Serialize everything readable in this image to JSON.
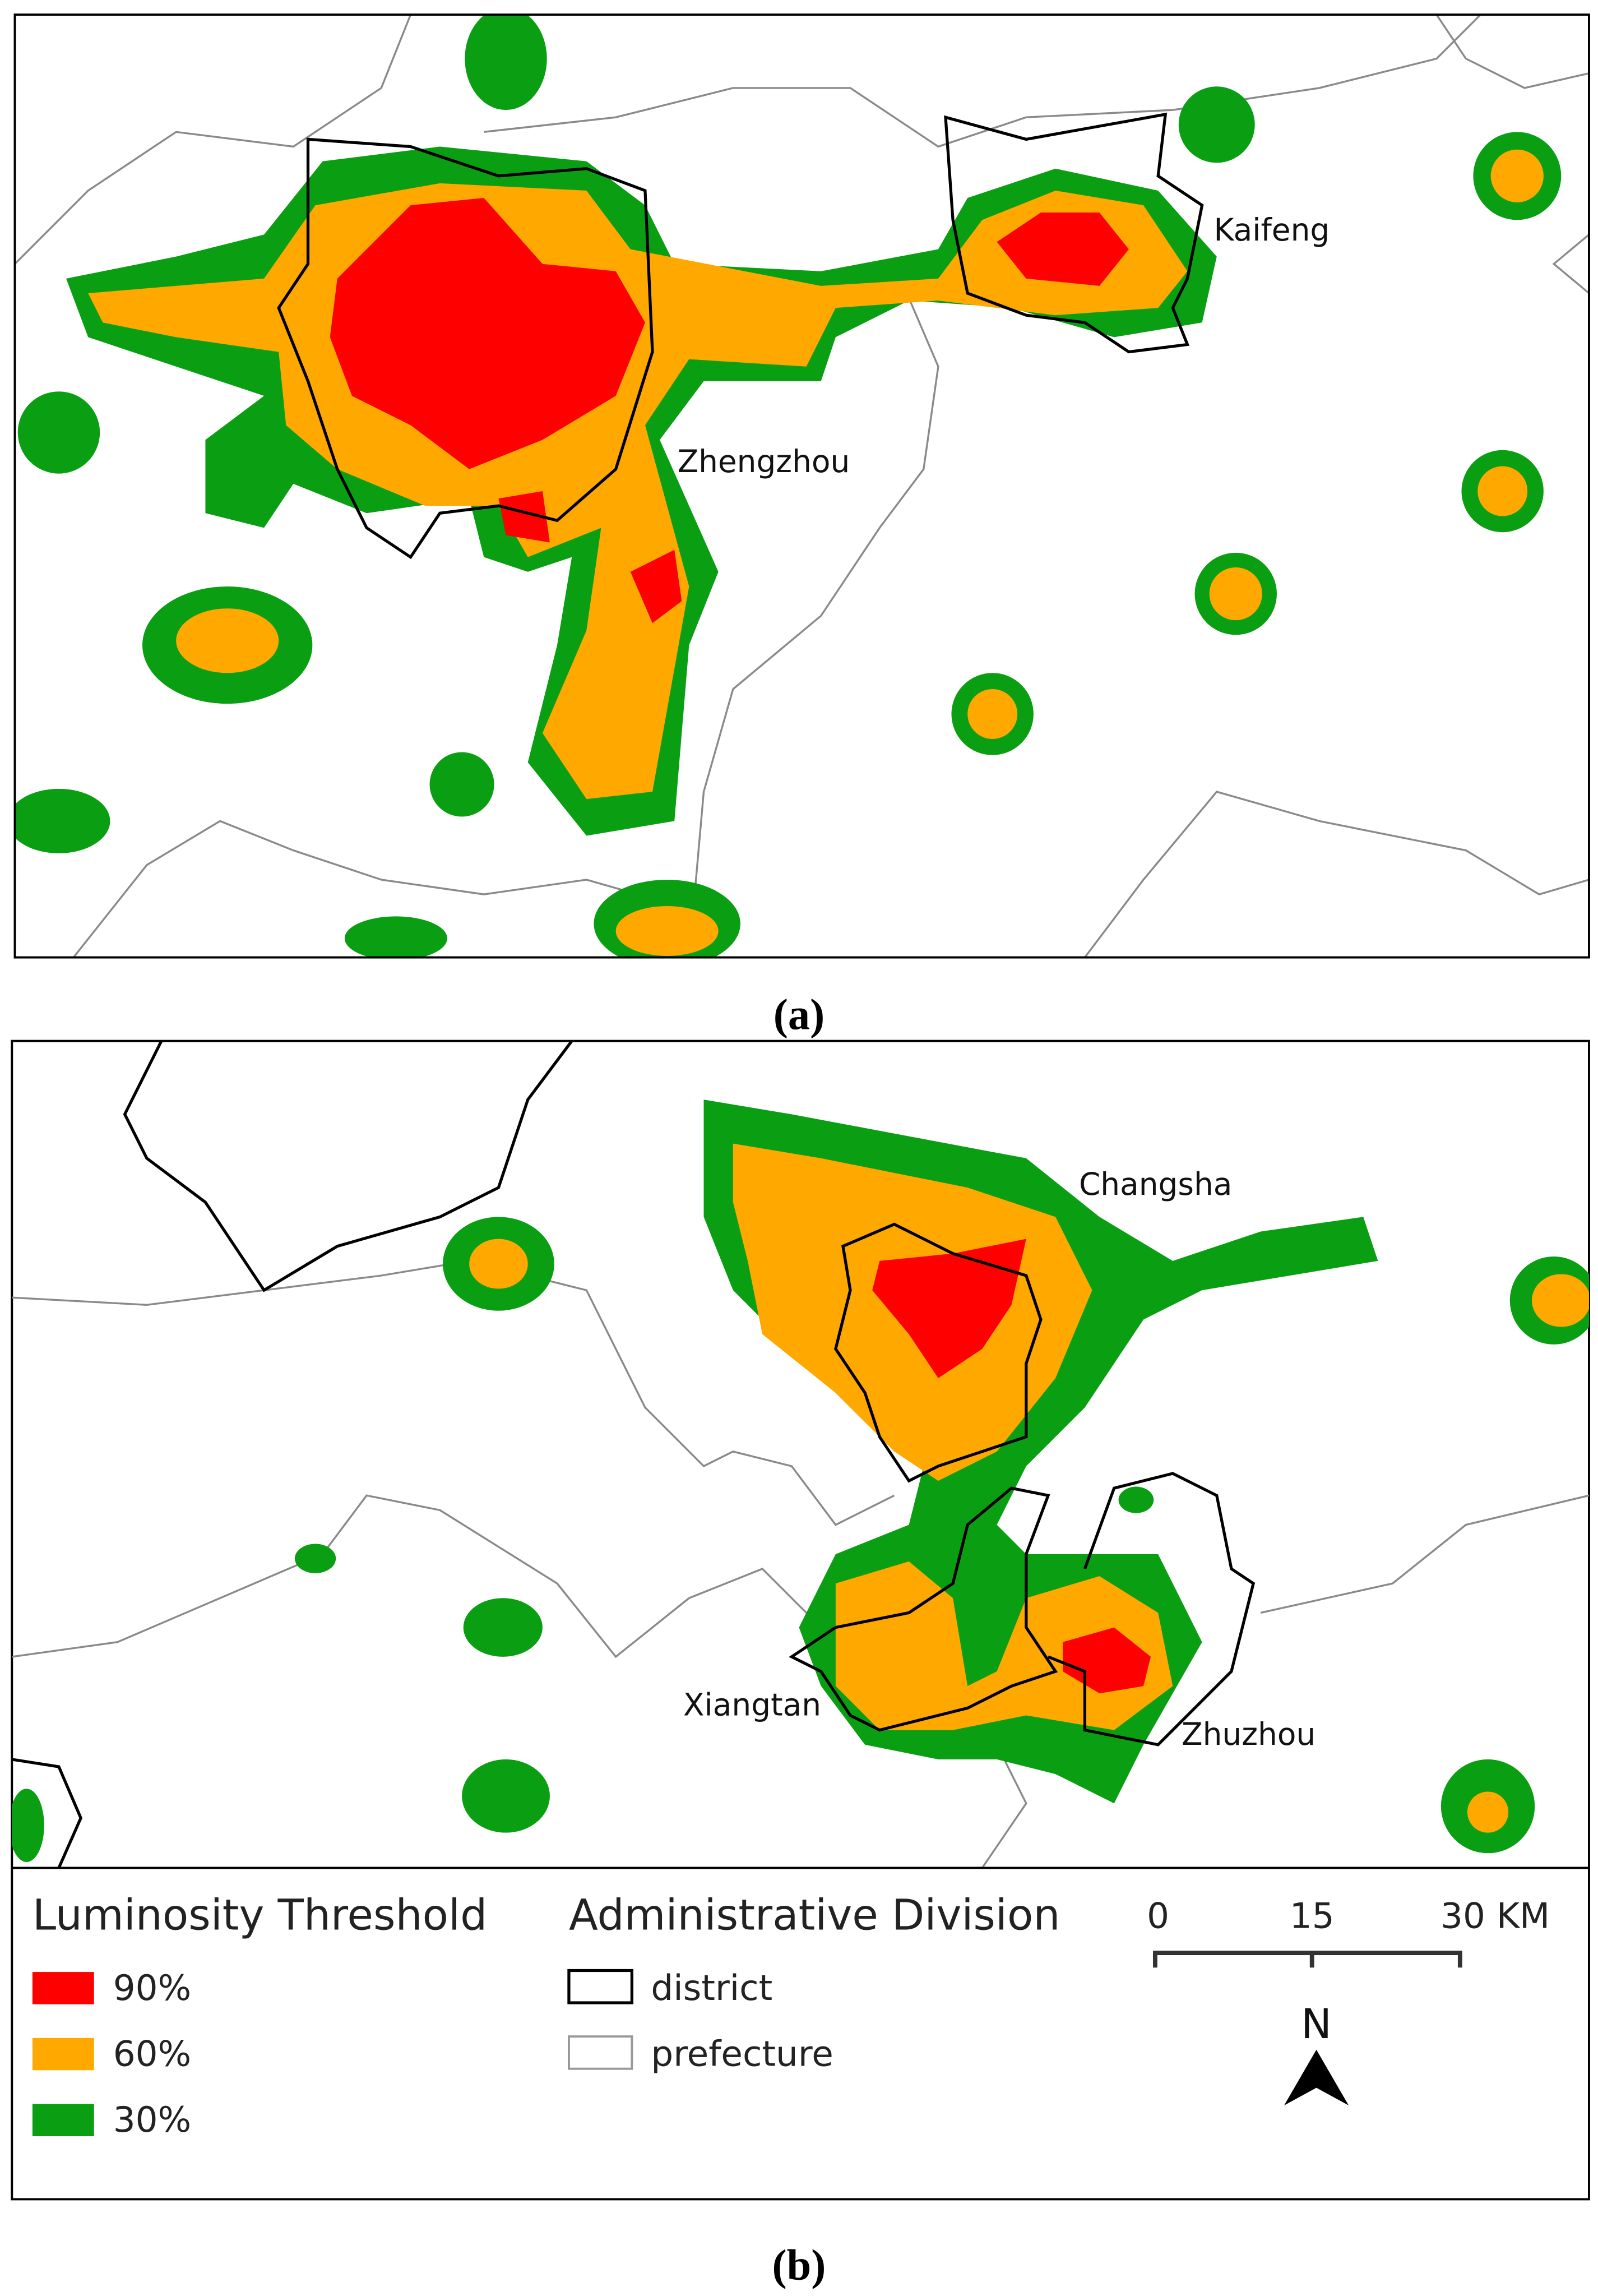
{
  "panels": [
    {
      "label": "(a)",
      "places": [
        "Zhengzhou",
        "Kaifeng"
      ]
    },
    {
      "label": "(b)",
      "places": [
        "Changsha",
        "Xiangtan",
        "Zhuzhou"
      ]
    }
  ],
  "legend": {
    "luminosity": {
      "title": "Luminosity Threshold",
      "items": [
        "90%",
        "60%",
        "30%"
      ]
    },
    "division": {
      "title": "Administrative Division",
      "items": [
        "district",
        "prefecture"
      ]
    }
  },
  "scale_bar": {
    "ticks": [
      "0",
      "15",
      "30 KM"
    ]
  },
  "north": "N"
}
